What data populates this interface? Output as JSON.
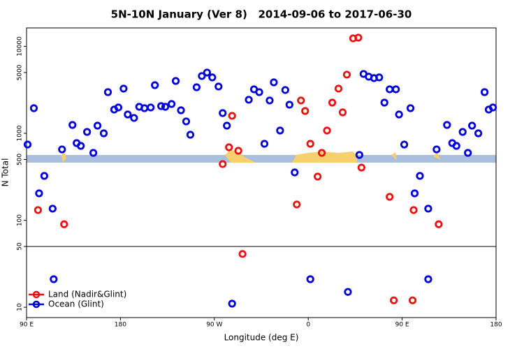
{
  "chart_data": {
    "type": "scatter",
    "title": "5N-10N January (Ver 8)   2014-09-06 to 2017-06-30",
    "x_label": "Longitude (deg E)",
    "y_label": "N Total",
    "xlim": [
      90,
      540
    ],
    "xticks": [
      {
        "value": 90,
        "label": "90 E"
      },
      180,
      {
        "value": 270,
        "label": "90 W"
      },
      {
        "value": 360,
        "label": "0"
      },
      {
        "value": 450,
        "label": "90 E"
      },
      {
        "value": 540,
        "label": "180"
      }
    ],
    "ylim": [
      7.6,
      16300
    ],
    "y_scale": "log",
    "yticks": [
      10,
      50,
      100,
      500,
      1000,
      5000,
      10000
    ],
    "hlines": [
      50
    ],
    "legend": "bottom-left",
    "series": [
      {
        "name": "Land (Nadir&Glint)",
        "color": "#ee1111",
        "x": [
          101,
          126,
          278,
          287,
          284,
          293,
          297,
          349,
          353,
          357,
          362,
          369,
          373,
          378,
          383,
          389,
          393,
          397,
          403,
          408,
          411,
          438,
          442,
          460,
          461,
          485
        ],
        "values": [
          131,
          90,
          443,
          1589,
          691,
          630,
          41,
          152,
          2387,
          1807,
          758,
          318,
          596,
          1077,
          2256,
          3266,
          1742,
          4732,
          12360,
          12590,
          404,
          186,
          12,
          12,
          131,
          90
        ]
      },
      {
        "name": "Ocean (Glint)",
        "color": "#0000dd",
        "x": [
          91,
          97,
          102,
          107,
          115,
          116,
          124,
          134,
          138,
          142,
          148,
          154,
          158,
          164,
          168,
          174,
          178,
          183,
          187,
          193,
          198,
          203,
          209,
          213,
          219,
          223,
          229,
          233,
          238,
          243,
          247,
          253,
          258,
          263,
          268,
          274,
          278,
          282,
          287,
          303,
          308,
          313,
          318,
          323,
          327,
          333,
          338,
          342,
          347,
          362,
          398,
          409,
          413,
          418,
          423,
          428,
          433,
          438,
          444,
          447,
          452,
          458,
          462,
          467,
          475,
          475,
          483,
          493,
          498,
          502,
          508,
          513,
          517,
          523,
          529,
          533,
          537
        ],
        "values": [
          743,
          1946,
          204,
          324,
          136,
          21,
          653,
          1248,
          772,
          717,
          1038,
          596,
          1225,
          1000,
          2977,
          1876,
          1983,
          3266,
          1648,
          1503,
          2019,
          1946,
          1983,
          3581,
          2056,
          2019,
          2173,
          4000,
          1841,
          1370,
          964,
          3388,
          4560,
          5000,
          4395,
          3453,
          1709,
          1225,
          11,
          2432,
          3206,
          2977,
          758,
          2387,
          3855,
          1077,
          3148,
          2134,
          355,
          21,
          15,
          564,
          4819,
          4477,
          4315,
          4395,
          2256,
          3206,
          3206,
          1648,
          743,
          1946,
          204,
          324,
          136,
          21,
          653,
          1248,
          772,
          717,
          1038,
          596,
          1225,
          1000,
          2977,
          1876,
          1983
        ]
      }
    ]
  }
}
